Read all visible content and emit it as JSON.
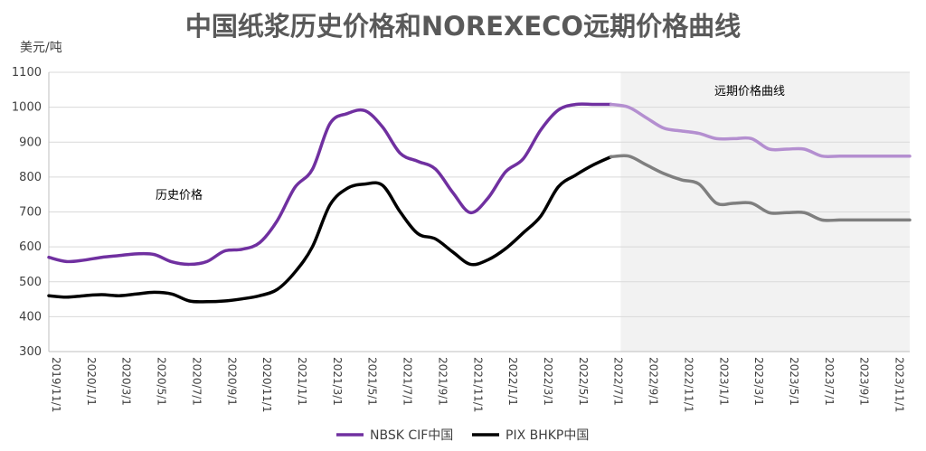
{
  "chart_data": {
    "type": "line",
    "title": "中国纸浆历史价格和NOREXECO远期价格曲线",
    "ylabel": "美元/吨",
    "ylim": [
      300,
      1100
    ],
    "yticks": [
      300,
      400,
      500,
      600,
      700,
      800,
      900,
      1000,
      1100
    ],
    "grid": true,
    "legend_position": "bottom",
    "annotations": {
      "history": "历史价格",
      "forward": "远期价格曲线"
    },
    "x_tick_labels": [
      "2019/11/1",
      "2020/1/1",
      "2020/3/1",
      "2020/5/1",
      "2020/7/1",
      "2020/9/1",
      "2020/11/1",
      "2021/1/1",
      "2021/3/1",
      "2021/5/1",
      "2021/7/1",
      "2021/9/1",
      "2021/11/1",
      "2022/1/1",
      "2022/3/1",
      "2022/5/1",
      "2022/7/1",
      "2022/9/1",
      "2022/11/1",
      "2023/1/1",
      "2023/3/1",
      "2023/5/1",
      "2023/7/1",
      "2023/9/1",
      "2023/11/1"
    ],
    "x": [
      "2019-11",
      "2019-12",
      "2020-01",
      "2020-02",
      "2020-03",
      "2020-04",
      "2020-05",
      "2020-06",
      "2020-07",
      "2020-08",
      "2020-09",
      "2020-10",
      "2020-11",
      "2020-12",
      "2021-01",
      "2021-02",
      "2021-03",
      "2021-04",
      "2021-05",
      "2021-06",
      "2021-07",
      "2021-08",
      "2021-09",
      "2021-10",
      "2021-11",
      "2021-12",
      "2022-01",
      "2022-02",
      "2022-03",
      "2022-04",
      "2022-05",
      "2022-06",
      "2022-07",
      "2022-08",
      "2022-09",
      "2022-10",
      "2022-11",
      "2022-12",
      "2023-01",
      "2023-02",
      "2023-03",
      "2023-04",
      "2023-05",
      "2023-06",
      "2023-07",
      "2023-08",
      "2023-09",
      "2023-10",
      "2023-11",
      "2023-12"
    ],
    "forward_start": "2022-08",
    "series": [
      {
        "name": "NBSK CIF中国",
        "color": "#7030A0",
        "forward_color": "#B48FD0",
        "values": [
          570,
          558,
          562,
          570,
          575,
          580,
          578,
          557,
          550,
          558,
          588,
          593,
          612,
          675,
          770,
          822,
          953,
          982,
          990,
          943,
          868,
          845,
          823,
          755,
          698,
          740,
          815,
          852,
          935,
          992,
          1008,
          1008,
          1008,
          1000,
          970,
          940,
          932,
          925,
          910,
          910,
          910,
          880,
          880,
          880,
          860,
          860,
          860,
          860,
          860,
          860
        ]
      },
      {
        "name": "PIX BHKP中国",
        "color": "#000000",
        "forward_color": "#7F7F7F",
        "values": [
          460,
          456,
          460,
          463,
          460,
          465,
          470,
          465,
          445,
          443,
          445,
          451,
          460,
          478,
          527,
          600,
          720,
          768,
          780,
          776,
          700,
          638,
          623,
          585,
          550,
          563,
          595,
          640,
          688,
          772,
          806,
          835,
          858,
          860,
          835,
          810,
          792,
          780,
          725,
          725,
          725,
          698,
          698,
          698,
          677,
          677,
          677,
          677,
          677,
          677
        ]
      }
    ]
  }
}
